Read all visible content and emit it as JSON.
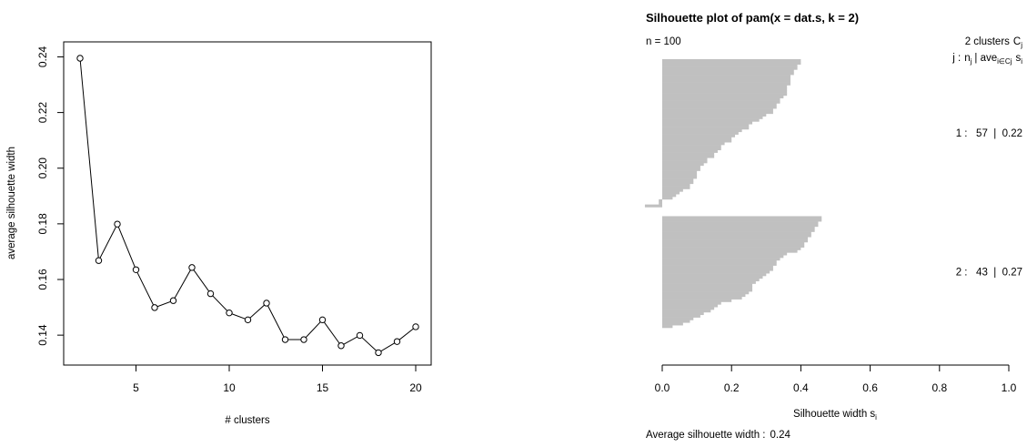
{
  "colors": {
    "axis": "#000000",
    "bar_fill": "#c0c0c0",
    "background": "#ffffff"
  },
  "chart_data": [
    {
      "type": "line",
      "title": "",
      "xlabel": "# clusters",
      "ylabel": "average silhouette width",
      "xlim": [
        2,
        20
      ],
      "ylim": [
        0.1335,
        0.2395
      ],
      "xticks": [
        5,
        10,
        15,
        20
      ],
      "yticks": [
        0.14,
        0.16,
        0.18,
        0.2,
        0.22,
        0.24
      ],
      "grid": false,
      "legend": "none",
      "marker": "open-circle",
      "x": [
        2,
        3,
        4,
        5,
        6,
        7,
        8,
        9,
        10,
        11,
        12,
        13,
        14,
        15,
        16,
        17,
        18,
        19,
        20
      ],
      "y": [
        0.2395,
        0.1668,
        0.1799,
        0.1635,
        0.1499,
        0.1524,
        0.1643,
        0.1549,
        0.148,
        0.1455,
        0.1515,
        0.1384,
        0.1384,
        0.1455,
        0.1362,
        0.1399,
        0.1337,
        0.1377,
        0.143
      ]
    },
    {
      "type": "bar",
      "orientation": "horizontal",
      "title": "Silhouette plot of pam(x = dat.s, k = 2)",
      "n_label": "n = 100",
      "header_count": "2 clusters",
      "header_cj": "C",
      "header_cj_sub": "j",
      "header2_j": "j :",
      "header2_n": "n",
      "header2_n_sub": "j",
      "header2_ave": "| ave",
      "header2_ave_sub": "i∈Cj",
      "header2_s": "s",
      "header2_s_sub": "i",
      "xlabel": "Silhouette width s",
      "xlabel_sub": "i",
      "footer_label": "Average silhouette width :",
      "footer_value": "0.24",
      "xlim": [
        0,
        1
      ],
      "xticks": [
        0.0,
        0.2,
        0.4,
        0.6,
        0.8,
        1.0
      ],
      "xtick_labels": [
        "0.0",
        "0.2",
        "0.4",
        "0.6",
        "0.8",
        "1.0"
      ],
      "grid": false,
      "clusters": [
        {
          "id": "1",
          "size": "57",
          "avg": "0.22",
          "widths": [
            0.4,
            0.4,
            0.39,
            0.39,
            0.38,
            0.38,
            0.37,
            0.37,
            0.37,
            0.37,
            0.36,
            0.36,
            0.36,
            0.36,
            0.35,
            0.34,
            0.34,
            0.33,
            0.33,
            0.32,
            0.32,
            0.3,
            0.29,
            0.28,
            0.26,
            0.25,
            0.25,
            0.23,
            0.22,
            0.21,
            0.2,
            0.2,
            0.18,
            0.17,
            0.17,
            0.16,
            0.15,
            0.15,
            0.13,
            0.13,
            0.12,
            0.11,
            0.11,
            0.1,
            0.1,
            0.1,
            0.09,
            0.09,
            0.08,
            0.08,
            0.06,
            0.05,
            0.04,
            0.03,
            -0.01,
            -0.01,
            -0.05
          ]
        },
        {
          "id": "2",
          "size": "43",
          "avg": "0.27",
          "widths": [
            0.46,
            0.46,
            0.45,
            0.45,
            0.44,
            0.44,
            0.43,
            0.43,
            0.42,
            0.42,
            0.41,
            0.41,
            0.4,
            0.39,
            0.36,
            0.35,
            0.34,
            0.33,
            0.33,
            0.32,
            0.32,
            0.31,
            0.3,
            0.29,
            0.28,
            0.27,
            0.26,
            0.26,
            0.26,
            0.25,
            0.24,
            0.23,
            0.2,
            0.17,
            0.16,
            0.15,
            0.14,
            0.12,
            0.11,
            0.09,
            0.08,
            0.06,
            0.03
          ]
        }
      ]
    }
  ]
}
